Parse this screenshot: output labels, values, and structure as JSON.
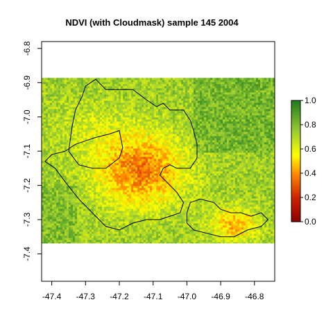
{
  "chart_data": {
    "type": "heatmap",
    "title": "NDVI (with Cloudmask) sample 145 2004",
    "xlabel": "",
    "ylabel": "",
    "xlim": [
      -47.43,
      -46.74
    ],
    "ylim": [
      -7.48,
      -6.78
    ],
    "x_ticks": [
      {
        "value": -47.4,
        "label": "-47.4"
      },
      {
        "value": -47.3,
        "label": "-47.3"
      },
      {
        "value": -47.2,
        "label": "-47.2"
      },
      {
        "value": -47.1,
        "label": "-47.1"
      },
      {
        "value": -47.0,
        "label": "-47.0"
      },
      {
        "value": -46.9,
        "label": "-46.9"
      },
      {
        "value": -46.8,
        "label": "-46.8"
      }
    ],
    "y_ticks": [
      {
        "value": -6.8,
        "label": "-6.8"
      },
      {
        "value": -6.9,
        "label": "-6.9"
      },
      {
        "value": -7.0,
        "label": "-7.0"
      },
      {
        "value": -7.1,
        "label": "-7.1"
      },
      {
        "value": -7.2,
        "label": "-7.2"
      },
      {
        "value": -7.3,
        "label": "-7.3"
      },
      {
        "value": -7.4,
        "label": "-7.4"
      }
    ],
    "raster_extent": {
      "xmin": -47.43,
      "xmax": -46.74,
      "ymin": -7.37,
      "ymax": -6.886
    },
    "grid": false,
    "legend": {
      "position": "right",
      "range": [
        0.0,
        1.0
      ],
      "ticks": [
        {
          "value": 0.0,
          "label": "0.0"
        },
        {
          "value": 0.2,
          "label": "0.2"
        },
        {
          "value": 0.4,
          "label": "0.4"
        },
        {
          "value": 0.6,
          "label": "0.6"
        },
        {
          "value": 0.8,
          "label": "0.8"
        },
        {
          "value": 1.0,
          "label": "1.0"
        }
      ],
      "colors": [
        {
          "value": 0.0,
          "color": "#8b0000"
        },
        {
          "value": 0.2,
          "color": "#cc2200"
        },
        {
          "value": 0.4,
          "color": "#ff8c00"
        },
        {
          "value": 0.55,
          "color": "#ffff00"
        },
        {
          "value": 0.75,
          "color": "#9acd32"
        },
        {
          "value": 1.0,
          "color": "#1e7b1e"
        }
      ]
    },
    "boundaries": [
      {
        "points": [
          [
            -47.3,
            -6.91
          ],
          [
            -47.27,
            -6.89
          ],
          [
            -47.24,
            -6.92
          ],
          [
            -47.16,
            -6.92
          ],
          [
            -47.12,
            -6.95
          ],
          [
            -47.09,
            -6.97
          ],
          [
            -47.07,
            -6.96
          ],
          [
            -47.05,
            -6.98
          ],
          [
            -47.01,
            -6.98
          ],
          [
            -46.99,
            -7.01
          ],
          [
            -46.98,
            -7.04
          ],
          [
            -46.97,
            -7.08
          ],
          [
            -46.97,
            -7.12
          ],
          [
            -46.99,
            -7.15
          ],
          [
            -47.03,
            -7.15
          ],
          [
            -47.05,
            -7.14
          ],
          [
            -47.07,
            -7.15
          ],
          [
            -47.08,
            -7.17
          ],
          [
            -47.06,
            -7.19
          ],
          [
            -47.03,
            -7.22
          ],
          [
            -47.01,
            -7.25
          ],
          [
            -47.02,
            -7.28
          ],
          [
            -47.05,
            -7.29
          ],
          [
            -47.08,
            -7.3
          ],
          [
            -47.12,
            -7.3
          ],
          [
            -47.16,
            -7.31
          ],
          [
            -47.2,
            -7.33
          ],
          [
            -47.24,
            -7.32
          ],
          [
            -47.28,
            -7.28
          ],
          [
            -47.32,
            -7.24
          ],
          [
            -47.36,
            -7.19
          ],
          [
            -47.39,
            -7.15
          ],
          [
            -47.42,
            -7.13
          ],
          [
            -47.4,
            -7.11
          ],
          [
            -47.36,
            -7.1
          ],
          [
            -47.33,
            -7.08
          ],
          [
            -47.3,
            -7.07
          ],
          [
            -47.27,
            -7.06
          ],
          [
            -47.23,
            -7.05
          ],
          [
            -47.2,
            -7.04
          ],
          [
            -47.19,
            -7.09
          ],
          [
            -47.2,
            -7.12
          ],
          [
            -47.24,
            -7.15
          ],
          [
            -47.28,
            -7.15
          ],
          [
            -47.32,
            -7.14
          ],
          [
            -47.35,
            -7.1
          ],
          [
            -47.34,
            -7.03
          ],
          [
            -47.33,
            -6.98
          ],
          [
            -47.31,
            -6.94
          ],
          [
            -47.3,
            -6.91
          ]
        ]
      },
      {
        "points": [
          [
            -46.99,
            -7.25
          ],
          [
            -46.96,
            -7.24
          ],
          [
            -46.92,
            -7.25
          ],
          [
            -46.9,
            -7.27
          ],
          [
            -46.87,
            -7.28
          ],
          [
            -46.84,
            -7.28
          ],
          [
            -46.81,
            -7.29
          ],
          [
            -46.78,
            -7.28
          ],
          [
            -46.76,
            -7.3
          ],
          [
            -46.78,
            -7.32
          ],
          [
            -46.82,
            -7.33
          ],
          [
            -46.86,
            -7.35
          ],
          [
            -46.9,
            -7.35
          ],
          [
            -46.94,
            -7.34
          ],
          [
            -46.98,
            -7.33
          ],
          [
            -47.0,
            -7.31
          ],
          [
            -47.0,
            -7.28
          ],
          [
            -46.99,
            -7.25
          ]
        ]
      }
    ]
  }
}
